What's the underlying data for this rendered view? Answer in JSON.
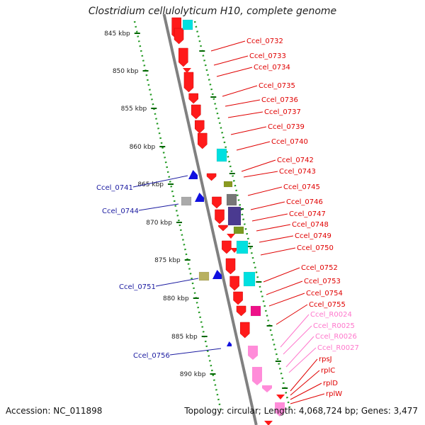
{
  "title": "Clostridium cellulolyticum H10, complete genome",
  "footer": {
    "accession": "Accession: NC_011898",
    "summary": "Topology: circular; Length: 4,068,724 bp; Genes: 3,477"
  },
  "colors": {
    "cds_forward": "#ff1a1a",
    "cds_reverse": "#1010e0",
    "trna": "#00e0e0",
    "rrna_or_other": "#ff66cc",
    "label_forward": "#e00000",
    "label_reverse": "#1a1aa0",
    "label_rna": "#ff77cc",
    "scale_tick": "#006600",
    "backbone": "#808080"
  },
  "scale_labels": [
    "845 kbp",
    "850 kbp",
    "855 kbp",
    "860 kbp",
    "865 kbp",
    "870 kbp",
    "875 kbp",
    "880 kbp",
    "885 kbp",
    "890 kbp"
  ],
  "forward_labels": [
    "Ccel_0732",
    "Ccel_0733",
    "Ccel_0734",
    "Ccel_0735",
    "Ccel_0736",
    "Ccel_0737",
    "Ccel_0739",
    "Ccel_0740",
    "Ccel_0742",
    "Ccel_0743",
    "Ccel_0745",
    "Ccel_0746",
    "Ccel_0747",
    "Ccel_0748",
    "Ccel_0749",
    "Ccel_0750",
    "Ccel_0752",
    "Ccel_0753",
    "Ccel_0754",
    "Ccel_0755"
  ],
  "rna_labels": [
    "Ccel_R0024",
    "Ccel_R0025",
    "Ccel_R0026",
    "Ccel_R0027"
  ],
  "protein_labels": [
    "rpsJ",
    "rplC",
    "rplD",
    "rplW"
  ],
  "reverse_labels": [
    "Ccel_0741",
    "Ccel_0744",
    "Ccel_0751",
    "Ccel_0756"
  ]
}
